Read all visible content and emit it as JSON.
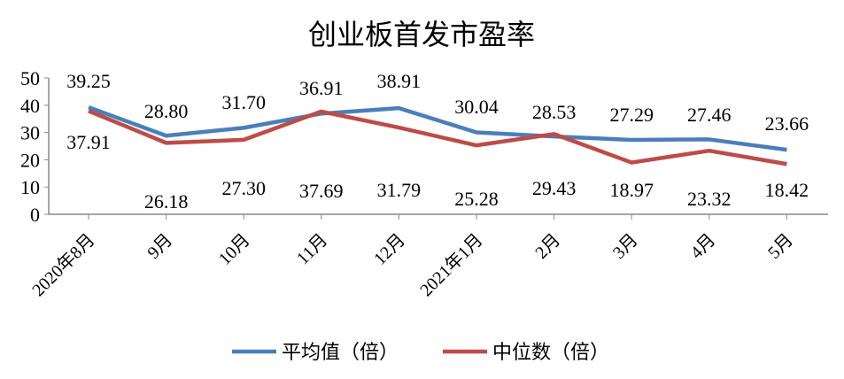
{
  "chart_data": {
    "type": "line",
    "title": "创业板首发市盈率",
    "categories": [
      "2020年8月",
      "9月",
      "10月",
      "11月",
      "12月",
      "2021年1月",
      "2月",
      "3月",
      "4月",
      "5月"
    ],
    "ylim": [
      0,
      50
    ],
    "yticks": [
      0,
      10,
      20,
      30,
      40,
      50
    ],
    "grid": false,
    "legend_position": "bottom",
    "series": [
      {
        "name": "平均值（倍）",
        "color": "#4a7ebb",
        "values": [
          39.25,
          28.8,
          31.7,
          36.91,
          38.91,
          30.04,
          28.53,
          27.29,
          27.46,
          23.66
        ],
        "label_side": "above"
      },
      {
        "name": "中位数（倍）",
        "color": "#be4b48",
        "values": [
          37.91,
          26.18,
          27.3,
          37.69,
          31.79,
          25.28,
          29.43,
          18.97,
          23.32,
          18.42
        ],
        "label_side": "below"
      }
    ]
  }
}
